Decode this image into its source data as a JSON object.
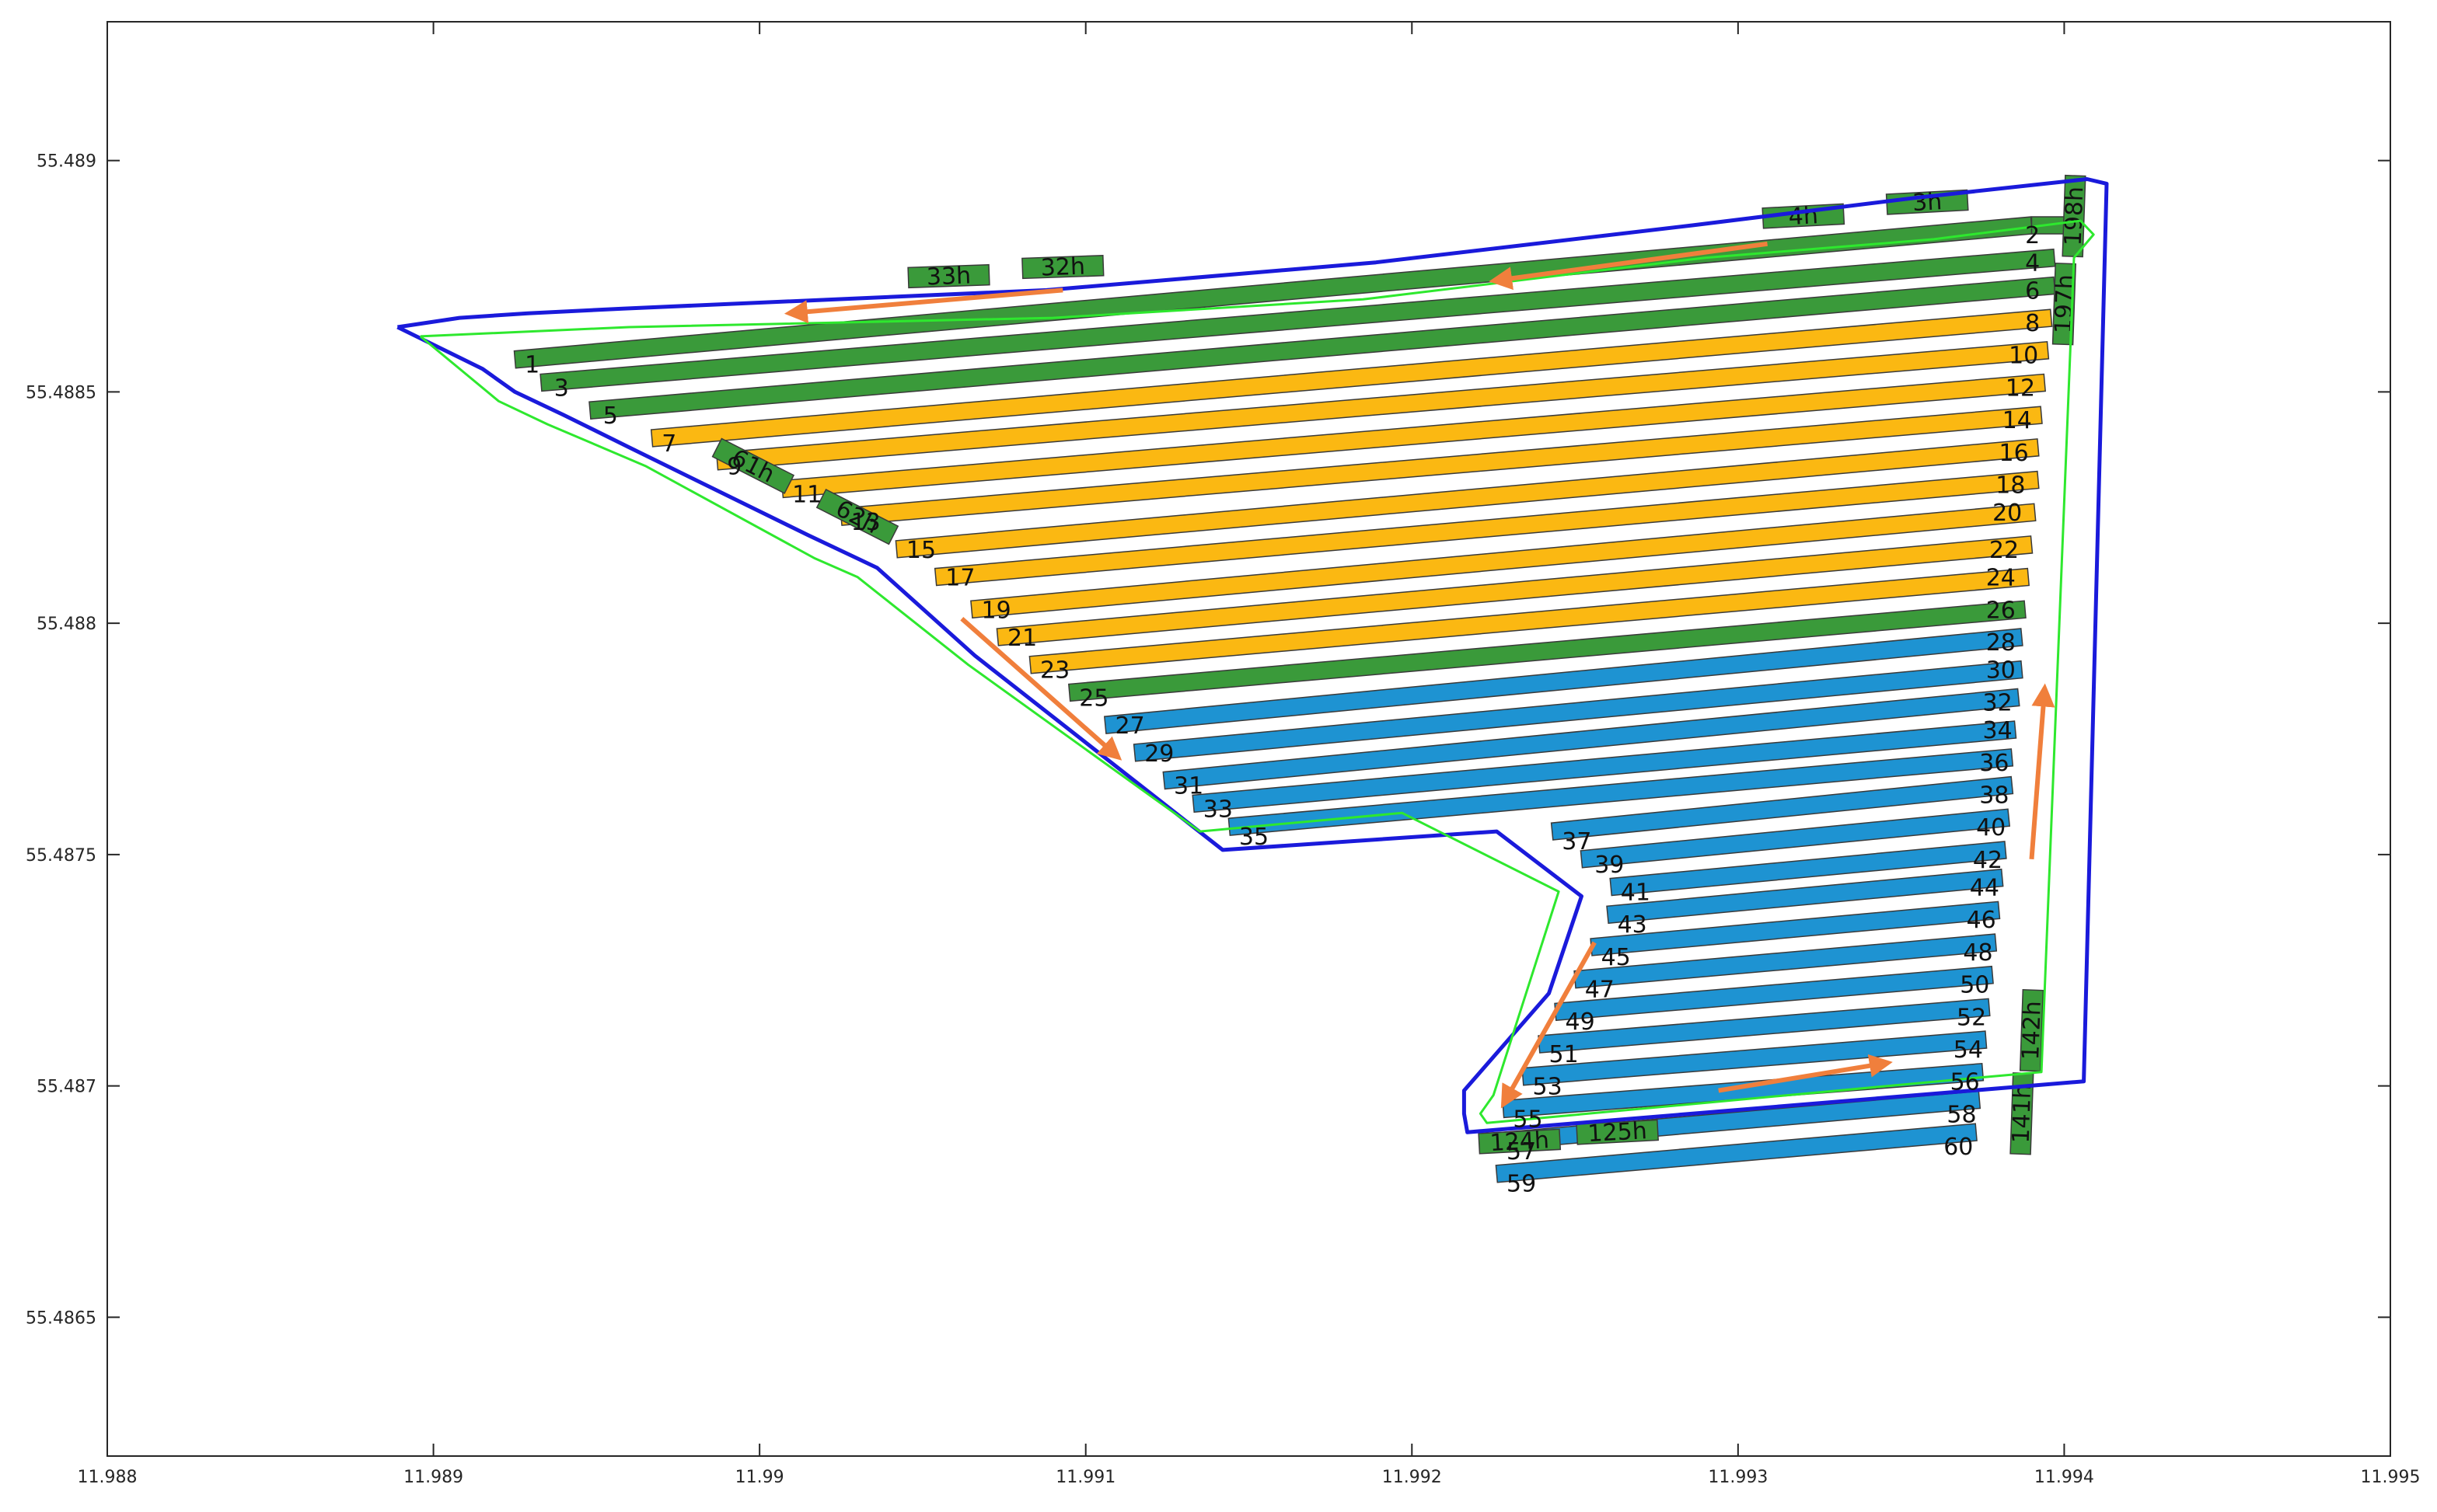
{
  "chart_data": {
    "type": "scatter",
    "title": "",
    "xlabel": "",
    "ylabel": "",
    "xlim": [
      11.988,
      11.995
    ],
    "ylim": [
      55.4862,
      55.4893
    ],
    "x_ticks": [
      "11.988",
      "11.989",
      "11.99",
      "11.991",
      "11.992",
      "11.993",
      "11.994",
      "11.995"
    ],
    "y_ticks": [
      "55.4865",
      "55.487",
      "55.4875",
      "55.488",
      "55.4885",
      "55.489"
    ],
    "grid": false,
    "colors": {
      "boundary": "#1a1adb",
      "path": "#2ee82e",
      "arrow": "#f07f3c",
      "green_strip": "#3a9a3a",
      "yellow_strip": "#fbb812",
      "blue_strip": "#1e93d2",
      "strip_edge": "#3a3a3a"
    },
    "field_boundary": [
      [
        11.98889,
        55.48864
      ],
      [
        11.98915,
        55.48855
      ],
      [
        11.98925,
        55.4885
      ],
      [
        11.9894,
        55.48845
      ],
      [
        11.9896,
        55.48838
      ],
      [
        11.99015,
        55.48819
      ],
      [
        11.9903,
        55.48814
      ],
      [
        11.99036,
        55.48812
      ],
      [
        11.99066,
        55.48793
      ],
      [
        11.99142,
        55.48751
      ],
      [
        11.99226,
        55.48755
      ],
      [
        11.99252,
        55.48741
      ],
      [
        11.99242,
        55.4872
      ],
      [
        11.99216,
        55.48699
      ],
      [
        11.99216,
        55.48694
      ],
      [
        11.99217,
        55.4869
      ],
      [
        11.99406,
        55.48701
      ],
      [
        11.99413,
        55.48895
      ],
      [
        11.99407,
        55.48896
      ],
      [
        11.99355,
        55.48892
      ],
      [
        11.99286,
        55.48886
      ],
      [
        11.99189,
        55.48878
      ],
      [
        11.99088,
        55.48872
      ],
      [
        11.98958,
        55.48868
      ],
      [
        11.98929,
        55.48867
      ],
      [
        11.98908,
        55.48866
      ],
      [
        11.98889,
        55.48864
      ]
    ],
    "coverage_path": [
      [
        11.98896,
        55.48862
      ],
      [
        11.9892,
        55.48848
      ],
      [
        11.98935,
        55.48843
      ],
      [
        11.98965,
        55.48834
      ],
      [
        11.99017,
        55.48814
      ],
      [
        11.9903,
        55.4881
      ],
      [
        11.99064,
        55.48791
      ],
      [
        11.99135,
        55.48755
      ],
      [
        11.99197,
        55.48759
      ],
      [
        11.99245,
        55.48742
      ],
      [
        11.99225,
        55.48698
      ],
      [
        11.99221,
        55.48694
      ],
      [
        11.99223,
        55.48692
      ],
      [
        11.99377,
        55.48702
      ],
      [
        11.99393,
        55.48703
      ],
      [
        11.99403,
        55.48879
      ],
      [
        11.99409,
        55.48884
      ],
      [
        11.99405,
        55.48887
      ],
      [
        11.9936,
        55.48883
      ],
      [
        11.9929,
        55.48879
      ],
      [
        11.99185,
        55.4887
      ],
      [
        11.9909,
        55.48866
      ],
      [
        11.9896,
        55.48864
      ],
      [
        11.98896,
        55.48862
      ]
    ],
    "arrows": [
      {
        "from": [
          11.99309,
          55.48882
        ],
        "to": [
          11.99225,
          55.48874
        ]
      },
      {
        "from": [
          11.99093,
          55.48872
        ],
        "to": [
          11.99009,
          55.48867
        ]
      },
      {
        "from": [
          11.99062,
          55.48801
        ],
        "to": [
          11.9911,
          55.48771
        ]
      },
      {
        "from": [
          11.99256,
          55.48731
        ],
        "to": [
          11.99228,
          55.48696
        ]
      },
      {
        "from": [
          11.99294,
          55.48699
        ],
        "to": [
          11.99346,
          55.48705
        ]
      },
      {
        "from": [
          11.9939,
          55.48749
        ],
        "to": [
          11.99394,
          55.48786
        ]
      }
    ],
    "strips": [
      {
        "label": "1",
        "color": "green",
        "x_start": 11.98925,
        "y_start": 55.48857,
        "x_end": 11.9939,
        "y_end": 55.48886
      },
      {
        "label": "2",
        "color": "green",
        "x_start": 11.9939,
        "y_start": 55.48886,
        "x_end": 11.994,
        "y_end": 55.48886
      },
      {
        "label": "3",
        "color": "green",
        "x_start": 11.98933,
        "y_start": 55.48852,
        "x_end": 11.99397,
        "y_end": 55.48879
      },
      {
        "label": "4",
        "color": "green",
        "x_start": 11.99397,
        "y_start": 55.48879,
        "x_end": 11.99397,
        "y_end": 55.48879
      },
      {
        "label": "5",
        "color": "green",
        "x_start": 11.98948,
        "y_start": 55.48846,
        "x_end": 11.99397,
        "y_end": 55.48873
      },
      {
        "label": "6",
        "color": "green",
        "x_start": 11.99397,
        "y_start": 55.48873,
        "x_end": 11.99397,
        "y_end": 55.48873
      },
      {
        "label": "7",
        "color": "yellow",
        "x_start": 11.98967,
        "y_start": 55.4884,
        "x_end": 11.99396,
        "y_end": 55.48866
      },
      {
        "label": "9",
        "color": "yellow",
        "x_start": 11.98987,
        "y_start": 55.48835,
        "x_end": 11.99395,
        "y_end": 55.48859
      },
      {
        "label": "11",
        "color": "yellow",
        "x_start": 11.99007,
        "y_start": 55.48829,
        "x_end": 11.99394,
        "y_end": 55.48852
      },
      {
        "label": "13",
        "color": "yellow",
        "x_start": 11.99025,
        "y_start": 55.48823,
        "x_end": 11.99393,
        "y_end": 55.48845
      },
      {
        "label": "15",
        "color": "yellow",
        "x_start": 11.99042,
        "y_start": 55.48816,
        "x_end": 11.99392,
        "y_end": 55.48838
      },
      {
        "label": "17",
        "color": "yellow",
        "x_start": 11.99054,
        "y_start": 55.4881,
        "x_end": 11.99392,
        "y_end": 55.48831
      },
      {
        "label": "19",
        "color": "yellow",
        "x_start": 11.99065,
        "y_start": 55.48803,
        "x_end": 11.99391,
        "y_end": 55.48824
      },
      {
        "label": "21",
        "color": "yellow",
        "x_start": 11.99073,
        "y_start": 55.48797,
        "x_end": 11.9939,
        "y_end": 55.48817
      },
      {
        "label": "23",
        "color": "yellow",
        "x_start": 11.99083,
        "y_start": 55.48791,
        "x_end": 11.99389,
        "y_end": 55.4881
      },
      {
        "label": "25",
        "color": "green",
        "x_start": 11.99095,
        "y_start": 55.48785,
        "x_end": 11.99388,
        "y_end": 55.48803
      },
      {
        "label": "27",
        "color": "blue",
        "x_start": 11.99106,
        "y_start": 55.48778,
        "x_end": 11.99387,
        "y_end": 55.48797
      },
      {
        "label": "29",
        "color": "blue",
        "x_start": 11.99115,
        "y_start": 55.48772,
        "x_end": 11.99387,
        "y_end": 55.4879
      },
      {
        "label": "31",
        "color": "blue",
        "x_start": 11.99124,
        "y_start": 55.48766,
        "x_end": 11.99386,
        "y_end": 55.48784
      },
      {
        "label": "33",
        "color": "blue",
        "x_start": 11.99133,
        "y_start": 55.48761,
        "x_end": 11.99385,
        "y_end": 55.48777
      },
      {
        "label": "35",
        "color": "blue",
        "x_start": 11.99144,
        "y_start": 55.48756,
        "x_end": 11.99384,
        "y_end": 55.48771
      },
      {
        "label": "37",
        "color": "blue",
        "x_start": 11.99243,
        "y_start": 55.48755,
        "x_end": 11.99384,
        "y_end": 55.48765
      },
      {
        "label": "39",
        "color": "blue",
        "x_start": 11.99252,
        "y_start": 55.48749,
        "x_end": 11.99383,
        "y_end": 55.48758
      },
      {
        "label": "41",
        "color": "blue",
        "x_start": 11.99261,
        "y_start": 55.48743,
        "x_end": 11.99382,
        "y_end": 55.48751
      },
      {
        "label": "43",
        "color": "blue",
        "x_start": 11.9926,
        "y_start": 55.48737,
        "x_end": 11.99381,
        "y_end": 55.48745
      },
      {
        "label": "45",
        "color": "blue",
        "x_start": 11.99255,
        "y_start": 55.4873,
        "x_end": 11.9938,
        "y_end": 55.48738
      },
      {
        "label": "47",
        "color": "blue",
        "x_start": 11.9925,
        "y_start": 55.48723,
        "x_end": 11.99379,
        "y_end": 55.48731
      },
      {
        "label": "49",
        "color": "blue",
        "x_start": 11.99244,
        "y_start": 55.48716,
        "x_end": 11.99378,
        "y_end": 55.48724
      },
      {
        "label": "51",
        "color": "blue",
        "x_start": 11.99239,
        "y_start": 55.48709,
        "x_end": 11.99377,
        "y_end": 55.48717
      },
      {
        "label": "53",
        "color": "blue",
        "x_start": 11.99234,
        "y_start": 55.48702,
        "x_end": 11.99376,
        "y_end": 55.4871
      },
      {
        "label": "55",
        "color": "blue",
        "x_start": 11.99228,
        "y_start": 55.48695,
        "x_end": 11.99375,
        "y_end": 55.48703
      },
      {
        "label": "57",
        "color": "blue",
        "x_start": 11.99226,
        "y_start": 55.48688,
        "x_end": 11.99374,
        "y_end": 55.48697
      },
      {
        "label": "59",
        "color": "blue",
        "x_start": 11.99226,
        "y_start": 55.48681,
        "x_end": 11.99373,
        "y_end": 55.4869
      }
    ],
    "strip_labels": [
      {
        "text": "1",
        "x": 11.98928,
        "y": 55.48856
      },
      {
        "text": "3",
        "x": 11.98937,
        "y": 55.48851
      },
      {
        "text": "5",
        "x": 11.98952,
        "y": 55.48845
      },
      {
        "text": "7",
        "x": 11.9897,
        "y": 55.48839
      },
      {
        "text": "9",
        "x": 11.9899,
        "y": 55.48834
      },
      {
        "text": "11",
        "x": 11.9901,
        "y": 55.48828
      },
      {
        "text": "13",
        "x": 11.99028,
        "y": 55.48822
      },
      {
        "text": "15",
        "x": 11.99045,
        "y": 55.48816
      },
      {
        "text": "17",
        "x": 11.99057,
        "y": 55.4881
      },
      {
        "text": "19",
        "x": 11.99068,
        "y": 55.48803
      },
      {
        "text": "21",
        "x": 11.99076,
        "y": 55.48797
      },
      {
        "text": "23",
        "x": 11.99086,
        "y": 55.4879
      },
      {
        "text": "25",
        "x": 11.99098,
        "y": 55.48784
      },
      {
        "text": "27",
        "x": 11.99109,
        "y": 55.48778
      },
      {
        "text": "29",
        "x": 11.99118,
        "y": 55.48772
      },
      {
        "text": "31",
        "x": 11.99127,
        "y": 55.48765
      },
      {
        "text": "33",
        "x": 11.99136,
        "y": 55.4876
      },
      {
        "text": "35",
        "x": 11.99147,
        "y": 55.48754
      },
      {
        "text": "37",
        "x": 11.99246,
        "y": 55.48753
      },
      {
        "text": "39",
        "x": 11.99256,
        "y": 55.48748
      },
      {
        "text": "41",
        "x": 11.99264,
        "y": 55.48742
      },
      {
        "text": "43",
        "x": 11.99263,
        "y": 55.48735
      },
      {
        "text": "45",
        "x": 11.99258,
        "y": 55.48728
      },
      {
        "text": "47",
        "x": 11.99253,
        "y": 55.48721
      },
      {
        "text": "49",
        "x": 11.99247,
        "y": 55.48714
      },
      {
        "text": "51",
        "x": 11.99242,
        "y": 55.48707
      },
      {
        "text": "53",
        "x": 11.99237,
        "y": 55.487
      },
      {
        "text": "55",
        "x": 11.99231,
        "y": 55.48693
      },
      {
        "text": "57",
        "x": 11.99229,
        "y": 55.48686
      },
      {
        "text": "59",
        "x": 11.99229,
        "y": 55.48679
      },
      {
        "text": "2",
        "x": 11.99388,
        "y": 55.48884
      },
      {
        "text": "4",
        "x": 11.99388,
        "y": 55.48878
      },
      {
        "text": "6",
        "x": 11.99388,
        "y": 55.48872
      },
      {
        "text": "8",
        "x": 11.99388,
        "y": 55.48865
      },
      {
        "text": "10",
        "x": 11.99383,
        "y": 55.48858
      },
      {
        "text": "12",
        "x": 11.99382,
        "y": 55.48851
      },
      {
        "text": "14",
        "x": 11.99381,
        "y": 55.48844
      },
      {
        "text": "16",
        "x": 11.9938,
        "y": 55.48837
      },
      {
        "text": "18",
        "x": 11.99379,
        "y": 55.4883
      },
      {
        "text": "20",
        "x": 11.99378,
        "y": 55.48824
      },
      {
        "text": "22",
        "x": 11.99377,
        "y": 55.48816
      },
      {
        "text": "24",
        "x": 11.99376,
        "y": 55.4881
      },
      {
        "text": "26",
        "x": 11.99376,
        "y": 55.48803
      },
      {
        "text": "28",
        "x": 11.99376,
        "y": 55.48796
      },
      {
        "text": "30",
        "x": 11.99376,
        "y": 55.4879
      },
      {
        "text": "32",
        "x": 11.99375,
        "y": 55.48783
      },
      {
        "text": "34",
        "x": 11.99375,
        "y": 55.48777
      },
      {
        "text": "36",
        "x": 11.99374,
        "y": 55.4877
      },
      {
        "text": "38",
        "x": 11.99374,
        "y": 55.48763
      },
      {
        "text": "40",
        "x": 11.99373,
        "y": 55.48756
      },
      {
        "text": "42",
        "x": 11.99372,
        "y": 55.48749
      },
      {
        "text": "44",
        "x": 11.99371,
        "y": 55.48743
      },
      {
        "text": "46",
        "x": 11.9937,
        "y": 55.48736
      },
      {
        "text": "48",
        "x": 11.99369,
        "y": 55.48729
      },
      {
        "text": "50",
        "x": 11.99368,
        "y": 55.48722
      },
      {
        "text": "52",
        "x": 11.99367,
        "y": 55.48715
      },
      {
        "text": "54",
        "x": 11.99366,
        "y": 55.48708
      },
      {
        "text": "56",
        "x": 11.99365,
        "y": 55.48701
      },
      {
        "text": "58",
        "x": 11.99364,
        "y": 55.48694
      },
      {
        "text": "60",
        "x": 11.99363,
        "y": 55.48687
      }
    ],
    "headland_segments": [
      {
        "label": "3h",
        "x": 11.99358,
        "y": 55.48891,
        "angle": -3
      },
      {
        "label": "4h",
        "x": 11.9932,
        "y": 55.48888,
        "angle": -3
      },
      {
        "label": "33h",
        "x": 11.99058,
        "y": 55.48875,
        "angle": -2
      },
      {
        "label": "32h",
        "x": 11.99093,
        "y": 55.48877,
        "angle": -2
      },
      {
        "label": "61h",
        "x": 11.98998,
        "y": 55.48834,
        "angle": 27
      },
      {
        "label": "62h",
        "x": 11.9903,
        "y": 55.48823,
        "angle": 27
      },
      {
        "label": "198h",
        "x": 11.99403,
        "y": 55.48888,
        "angle": -88
      },
      {
        "label": "197h",
        "x": 11.994,
        "y": 55.48869,
        "angle": -88
      },
      {
        "label": "142h",
        "x": 11.9939,
        "y": 55.48712,
        "angle": -88
      },
      {
        "label": "141h",
        "x": 11.99387,
        "y": 55.48694,
        "angle": -88
      },
      {
        "label": "124h",
        "x": 11.99233,
        "y": 55.48688,
        "angle": -3
      },
      {
        "label": "125h",
        "x": 11.99263,
        "y": 55.4869,
        "angle": -3
      }
    ]
  }
}
